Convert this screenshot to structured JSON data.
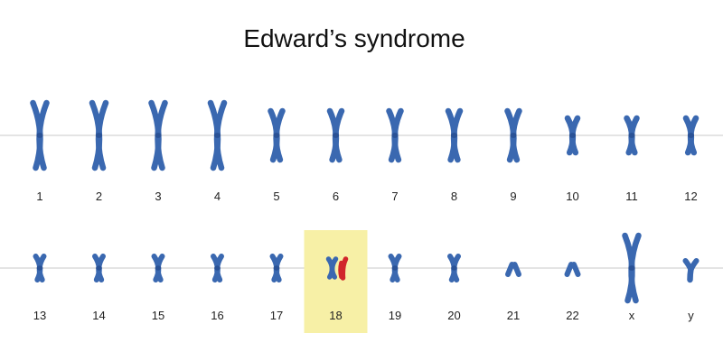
{
  "title": "Edward’s syndrome",
  "colors": {
    "chromosome": "#3a68b0",
    "chromosome_dark": "#2a5296",
    "extra_chromosome": "#d1262b",
    "highlight": "#f7f0a6",
    "baseline": "#c8c8c8"
  },
  "rows": [
    {
      "chromosomes": [
        {
          "label": "1",
          "shape": "x-large"
        },
        {
          "label": "2",
          "shape": "x-large"
        },
        {
          "label": "3",
          "shape": "x-large"
        },
        {
          "label": "4",
          "shape": "x-large"
        },
        {
          "label": "5",
          "shape": "x-medium"
        },
        {
          "label": "6",
          "shape": "x-medium"
        },
        {
          "label": "7",
          "shape": "x-medium"
        },
        {
          "label": "8",
          "shape": "x-medium"
        },
        {
          "label": "9",
          "shape": "x-medium"
        },
        {
          "label": "10",
          "shape": "x-small"
        },
        {
          "label": "11",
          "shape": "x-small"
        },
        {
          "label": "12",
          "shape": "x-small"
        }
      ]
    },
    {
      "chromosomes": [
        {
          "label": "13",
          "shape": "x-tiny"
        },
        {
          "label": "14",
          "shape": "x-tiny"
        },
        {
          "label": "15",
          "shape": "x-tiny"
        },
        {
          "label": "16",
          "shape": "x-tiny"
        },
        {
          "label": "17",
          "shape": "x-tiny"
        },
        {
          "label": "18",
          "shape": "trisomy",
          "highlighted": true
        },
        {
          "label": "19",
          "shape": "x-tiny"
        },
        {
          "label": "20",
          "shape": "x-tiny"
        },
        {
          "label": "21",
          "shape": "acro"
        },
        {
          "label": "22",
          "shape": "acro"
        },
        {
          "label": "x",
          "shape": "x-large"
        },
        {
          "label": "y",
          "shape": "y"
        }
      ]
    }
  ]
}
